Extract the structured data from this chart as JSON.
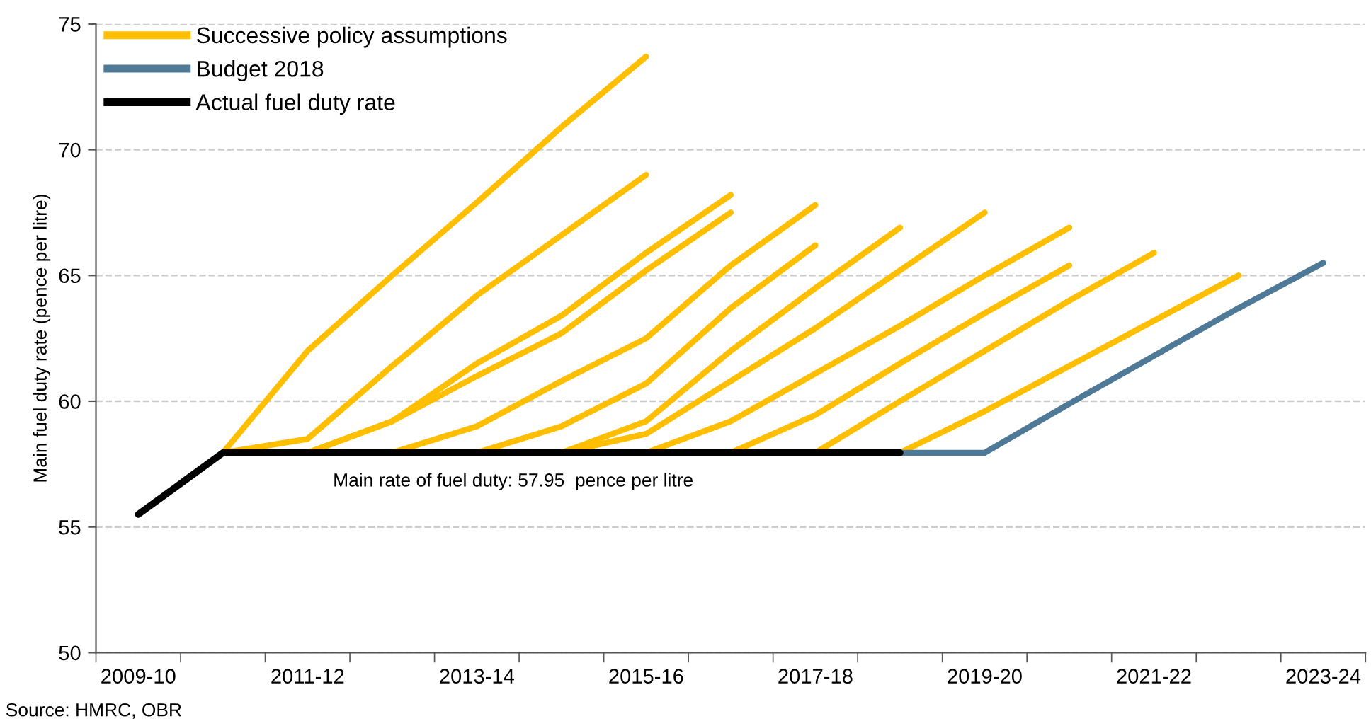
{
  "chart_data": {
    "type": "line",
    "ylabel": "Main fuel duty rate (pence per litre)",
    "categories": [
      "2009-10",
      null,
      "2011-12",
      null,
      "2013-14",
      null,
      "2015-16",
      null,
      "2017-18",
      null,
      "2019-20",
      null,
      "2021-22",
      null,
      "2023-24"
    ],
    "series": [
      {
        "name": "Successive policy assumptions",
        "color": "#ffbf00",
        "values": [
          null,
          57.95,
          62.0,
          65.0,
          67.9,
          70.9,
          73.7,
          null,
          null,
          null,
          null,
          null,
          null,
          null,
          null
        ]
      },
      {
        "color": "#ffbf00",
        "values": [
          null,
          57.95,
          58.5,
          61.4,
          64.2,
          66.6,
          69.0,
          null,
          null,
          null,
          null,
          null,
          null,
          null,
          null
        ]
      },
      {
        "color": "#ffbf00",
        "values": [
          null,
          57.95,
          57.95,
          59.2,
          61.5,
          63.4,
          65.9,
          68.2,
          null,
          null,
          null,
          null,
          null,
          null,
          null
        ]
      },
      {
        "color": "#ffbf00",
        "values": [
          null,
          57.95,
          57.95,
          59.2,
          61.0,
          62.7,
          65.2,
          67.5,
          null,
          null,
          null,
          null,
          null,
          null,
          null
        ]
      },
      {
        "color": "#ffbf00",
        "values": [
          null,
          null,
          null,
          57.95,
          59.0,
          60.8,
          62.5,
          65.4,
          67.8,
          null,
          null,
          null,
          null,
          null,
          null
        ]
      },
      {
        "color": "#ffbf00",
        "values": [
          null,
          null,
          null,
          null,
          57.95,
          59.0,
          60.7,
          63.7,
          66.2,
          null,
          null,
          null,
          null,
          null,
          null
        ]
      },
      {
        "color": "#ffbf00",
        "values": [
          null,
          null,
          null,
          null,
          null,
          57.95,
          59.2,
          62.0,
          64.5,
          66.9,
          null,
          null,
          null,
          null,
          null
        ]
      },
      {
        "color": "#ffbf00",
        "values": [
          null,
          null,
          null,
          null,
          null,
          57.95,
          58.7,
          60.8,
          62.9,
          65.2,
          67.5,
          null,
          null,
          null,
          null
        ]
      },
      {
        "color": "#ffbf00",
        "values": [
          null,
          null,
          null,
          null,
          null,
          null,
          57.95,
          59.2,
          61.1,
          63.0,
          65.0,
          66.9,
          null,
          null,
          null
        ]
      },
      {
        "color": "#ffbf00",
        "values": [
          null,
          null,
          null,
          null,
          null,
          null,
          null,
          57.95,
          59.45,
          61.5,
          63.5,
          65.4,
          null,
          null,
          null
        ]
      },
      {
        "color": "#ffbf00",
        "values": [
          null,
          null,
          null,
          null,
          null,
          null,
          null,
          null,
          57.95,
          60.0,
          62.0,
          64.0,
          65.9,
          null,
          null
        ]
      },
      {
        "color": "#ffbf00",
        "values": [
          null,
          null,
          null,
          null,
          null,
          null,
          null,
          null,
          null,
          57.95,
          59.6,
          61.4,
          63.2,
          65.0,
          null
        ]
      },
      {
        "name": "Budget 2018",
        "color": "#4f7a97",
        "values": [
          null,
          null,
          null,
          null,
          null,
          null,
          null,
          null,
          null,
          57.95,
          57.95,
          59.9,
          61.8,
          63.7,
          65.5
        ]
      },
      {
        "name": "Actual fuel duty rate",
        "color": "#000000",
        "values": [
          55.5,
          57.95,
          57.95,
          57.95,
          57.95,
          57.95,
          57.95,
          57.95,
          57.95,
          57.95,
          null,
          null,
          null,
          null,
          null
        ]
      }
    ],
    "ylim": [
      50,
      75
    ],
    "yticks": [
      50,
      55,
      60,
      65,
      70,
      75
    ],
    "grid": "y",
    "legend": "top left",
    "line_style": "solid",
    "marker": "none",
    "annotations": [
      "Main rate of fuel duty: 57.95  pence per litre",
      "Source: HMRC, OBR"
    ]
  }
}
